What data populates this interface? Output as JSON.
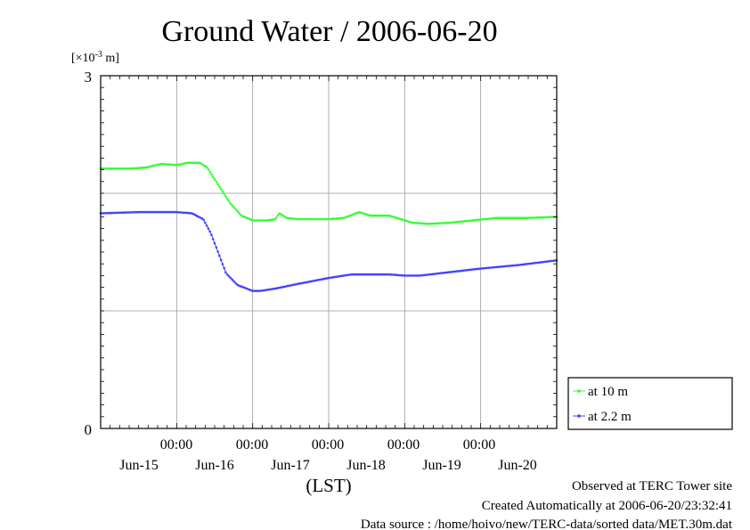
{
  "chart_data": {
    "type": "line",
    "title": "Ground Water / 2006-06-20",
    "yunit_prefix": "[×10",
    "yunit_exp": "-3",
    "yunit_suffix": " m]",
    "ylim": [
      0,
      3
    ],
    "ytick_labels": [
      "3",
      "0"
    ],
    "xlabel": "(LST)",
    "x_time_labels": [
      "00:00",
      "00:00",
      "00:00",
      "00:00",
      "00:00"
    ],
    "x_date_labels": [
      "Jun-15",
      "Jun-16",
      "Jun-17",
      "Jun-18",
      "Jun-19",
      "Jun-20"
    ],
    "xlim_days": [
      0,
      6
    ],
    "grid": true,
    "legend_position": "bottom-right outside",
    "series": [
      {
        "name": "at 10 m",
        "color": "#33ff33",
        "points": [
          [
            0.0,
            2.21
          ],
          [
            0.4,
            2.21
          ],
          [
            0.6,
            2.22
          ],
          [
            0.8,
            2.25
          ],
          [
            1.0,
            2.24
          ],
          [
            1.15,
            2.26
          ],
          [
            1.3,
            2.26
          ],
          [
            1.4,
            2.22
          ],
          [
            1.55,
            2.07
          ],
          [
            1.7,
            1.92
          ],
          [
            1.85,
            1.81
          ],
          [
            2.0,
            1.77
          ],
          [
            2.2,
            1.77
          ],
          [
            2.3,
            1.78
          ],
          [
            2.35,
            1.83
          ],
          [
            2.45,
            1.79
          ],
          [
            2.6,
            1.78
          ],
          [
            2.8,
            1.78
          ],
          [
            3.0,
            1.78
          ],
          [
            3.2,
            1.79
          ],
          [
            3.4,
            1.84
          ],
          [
            3.55,
            1.81
          ],
          [
            3.8,
            1.81
          ],
          [
            3.95,
            1.78
          ],
          [
            4.1,
            1.75
          ],
          [
            4.3,
            1.74
          ],
          [
            4.6,
            1.75
          ],
          [
            4.9,
            1.77
          ],
          [
            5.2,
            1.79
          ],
          [
            5.6,
            1.79
          ],
          [
            6.0,
            1.8
          ]
        ]
      },
      {
        "name": "at 2.2 m",
        "color": "#4444ff",
        "points": [
          [
            0.0,
            1.83
          ],
          [
            0.5,
            1.84
          ],
          [
            1.0,
            1.84
          ],
          [
            1.2,
            1.83
          ],
          [
            1.35,
            1.78
          ],
          [
            1.45,
            1.66
          ],
          [
            1.55,
            1.49
          ],
          [
            1.65,
            1.32
          ],
          [
            1.8,
            1.22
          ],
          [
            2.0,
            1.17
          ],
          [
            2.1,
            1.17
          ],
          [
            2.3,
            1.19
          ],
          [
            2.6,
            1.23
          ],
          [
            3.0,
            1.28
          ],
          [
            3.3,
            1.31
          ],
          [
            3.6,
            1.31
          ],
          [
            3.8,
            1.31
          ],
          [
            4.0,
            1.3
          ],
          [
            4.2,
            1.3
          ],
          [
            4.6,
            1.33
          ],
          [
            5.0,
            1.36
          ],
          [
            5.5,
            1.39
          ],
          [
            6.0,
            1.43
          ]
        ]
      }
    ]
  },
  "footer": {
    "line1": "Observed at TERC Tower site",
    "line2": "Created Automatically at 2006-06-20/23:32:41",
    "line3": "Data source : /home/hoivo/new/TERC-data/sorted  data/MET.30m.dat"
  }
}
